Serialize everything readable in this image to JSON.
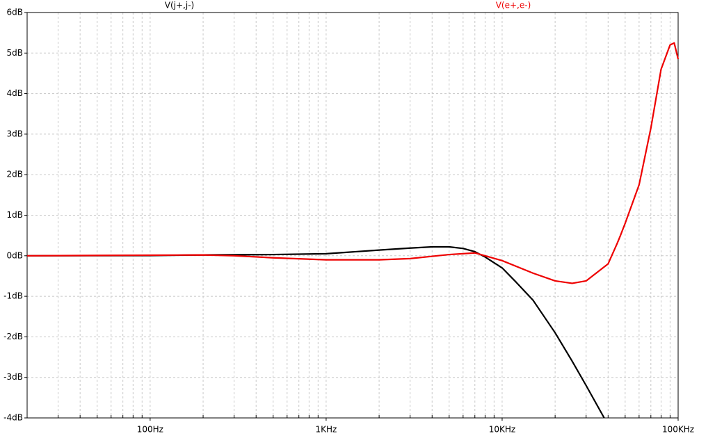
{
  "chart_data": {
    "type": "line",
    "log_x": true,
    "grid": true,
    "xlim": [
      20,
      100000
    ],
    "xticks": [
      {
        "value": 100,
        "label": "100Hz"
      },
      {
        "value": 1000,
        "label": "1KHz"
      },
      {
        "value": 10000,
        "label": "10KHz"
      },
      {
        "value": 100000,
        "label": "100KHz"
      }
    ],
    "ylim": [
      -4,
      6
    ],
    "yticks": [
      {
        "value": -4,
        "label": "-4dB"
      },
      {
        "value": -3,
        "label": "-3dB"
      },
      {
        "value": -2,
        "label": "-2dB"
      },
      {
        "value": -1,
        "label": "-1dB"
      },
      {
        "value": 0,
        "label": "0dB"
      },
      {
        "value": 1,
        "label": "1dB"
      },
      {
        "value": 2,
        "label": "2dB"
      },
      {
        "value": 3,
        "label": "3dB"
      },
      {
        "value": 4,
        "label": "4dB"
      },
      {
        "value": 5,
        "label": "5dB"
      },
      {
        "value": 6,
        "label": "6dB"
      }
    ],
    "series": [
      {
        "name": "V(j+,j-)",
        "color": "#000000",
        "x": [
          20,
          100,
          200,
          500,
          1000,
          2000,
          3000,
          4000,
          5000,
          6000,
          7000,
          8000,
          10000,
          12000,
          15000,
          20000,
          25000,
          30000,
          38000
        ],
        "values": [
          0,
          0.005,
          0.02,
          0.03,
          0.05,
          0.14,
          0.19,
          0.22,
          0.22,
          0.18,
          0.1,
          -0.03,
          -0.3,
          -0.65,
          -1.1,
          -1.9,
          -2.6,
          -3.2,
          -4.0
        ]
      },
      {
        "name": "V(e+,e-)",
        "color": "#ee0000",
        "x": [
          20,
          200,
          300,
          500,
          1000,
          2000,
          3000,
          5000,
          7000,
          10000,
          15000,
          20000,
          25000,
          30000,
          40000,
          45000,
          47000,
          50000,
          60000,
          70000,
          80000,
          90000,
          95000,
          100000
        ],
        "values": [
          0,
          0.02,
          0.0,
          -0.05,
          -0.1,
          -0.1,
          -0.07,
          0.03,
          0.07,
          -0.12,
          -0.43,
          -0.62,
          -0.68,
          -0.62,
          -0.2,
          0.3,
          0.5,
          0.8,
          1.75,
          3.15,
          4.6,
          5.2,
          5.25,
          4.85
        ]
      }
    ]
  }
}
